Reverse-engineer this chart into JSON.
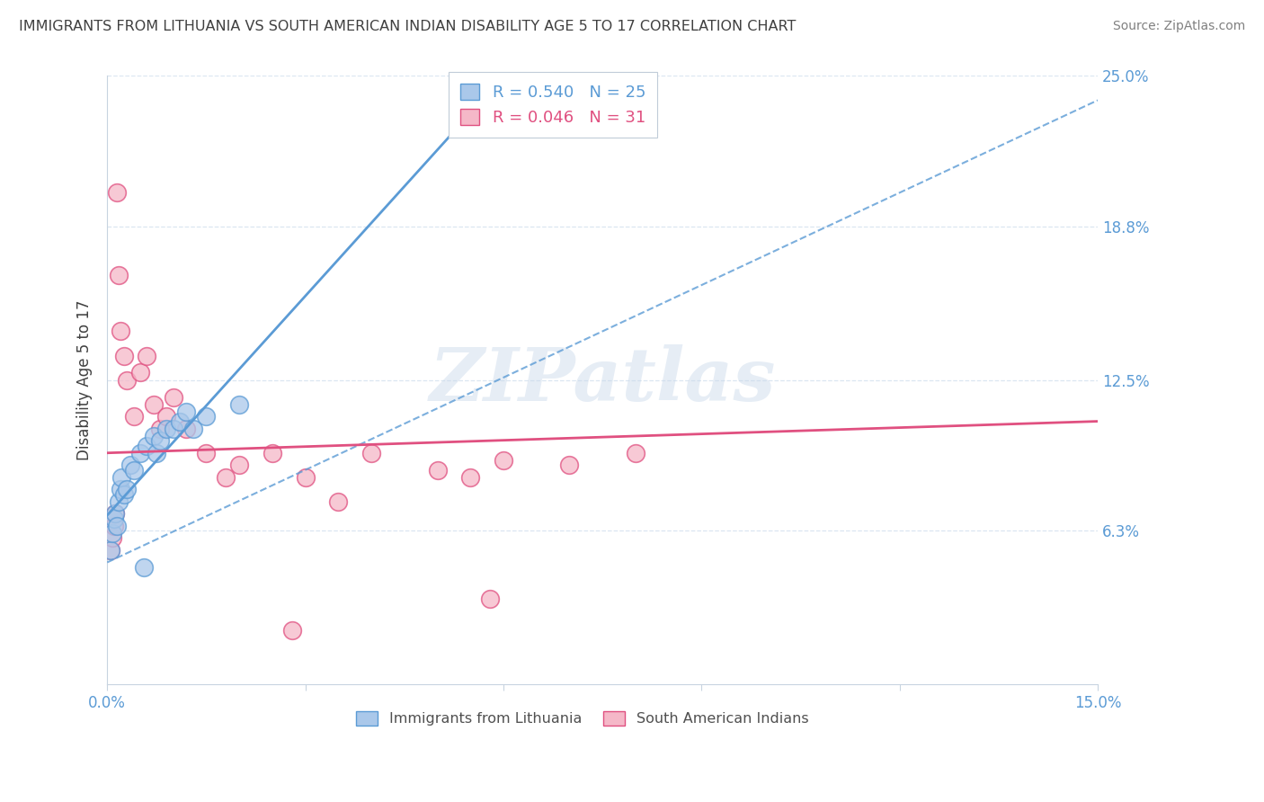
{
  "title": "IMMIGRANTS FROM LITHUANIA VS SOUTH AMERICAN INDIAN DISABILITY AGE 5 TO 17 CORRELATION CHART",
  "source": "Source: ZipAtlas.com",
  "ylabel": "Disability Age 5 to 17",
  "xlim": [
    0.0,
    15.0
  ],
  "ylim": [
    0.0,
    25.0
  ],
  "xtick_vals": [
    0.0,
    3.0,
    6.0,
    9.0,
    12.0,
    15.0
  ],
  "xtick_labels": [
    "0.0%",
    "",
    "",
    "",
    "",
    "15.0%"
  ],
  "ytick_values": [
    6.3,
    12.5,
    18.8,
    25.0
  ],
  "ytick_labels": [
    "6.3%",
    "12.5%",
    "18.8%",
    "25.0%"
  ],
  "series1_name": "Immigrants from Lithuania",
  "series1_R": 0.54,
  "series1_N": 25,
  "series1_color": "#aac8ea",
  "series1_edge_color": "#5b9bd5",
  "series1_trend_color": "#5b9bd5",
  "series1_trend_style": "--",
  "series1_x": [
    0.05,
    0.08,
    0.1,
    0.12,
    0.15,
    0.18,
    0.2,
    0.22,
    0.25,
    0.3,
    0.35,
    0.4,
    0.5,
    0.55,
    0.6,
    0.7,
    0.75,
    0.8,
    0.9,
    1.0,
    1.1,
    1.2,
    1.3,
    1.5,
    2.0
  ],
  "series1_y": [
    5.5,
    6.2,
    6.8,
    7.0,
    6.5,
    7.5,
    8.0,
    8.5,
    7.8,
    8.0,
    9.0,
    8.8,
    9.5,
    4.8,
    9.8,
    10.2,
    9.5,
    10.0,
    10.5,
    10.5,
    10.8,
    11.2,
    10.5,
    11.0,
    11.5
  ],
  "series2_name": "South American Indians",
  "series2_R": 0.046,
  "series2_N": 31,
  "series2_color": "#f5b8c8",
  "series2_edge_color": "#e05080",
  "series2_trend_color": "#e05080",
  "series2_trend_style": "-",
  "series2_x": [
    0.05,
    0.08,
    0.1,
    0.12,
    0.15,
    0.18,
    0.2,
    0.25,
    0.3,
    0.4,
    0.5,
    0.6,
    0.7,
    0.8,
    0.9,
    1.0,
    1.2,
    1.5,
    2.0,
    2.5,
    3.0,
    3.5,
    4.0,
    5.0,
    5.5,
    6.0,
    7.0,
    8.0,
    5.8,
    2.8,
    1.8
  ],
  "series2_y": [
    5.5,
    6.0,
    6.5,
    7.0,
    20.2,
    16.8,
    14.5,
    13.5,
    12.5,
    11.0,
    12.8,
    13.5,
    11.5,
    10.5,
    11.0,
    11.8,
    10.5,
    9.5,
    9.0,
    9.5,
    8.5,
    7.5,
    9.5,
    8.8,
    8.5,
    9.2,
    9.0,
    9.5,
    3.5,
    2.2,
    8.5
  ],
  "watermark_text": "ZIPatlas",
  "background_color": "#ffffff",
  "grid_color": "#d8e4f0",
  "title_color": "#404040",
  "source_color": "#808080",
  "tick_color": "#5b9bd5",
  "ylabel_color": "#404040"
}
